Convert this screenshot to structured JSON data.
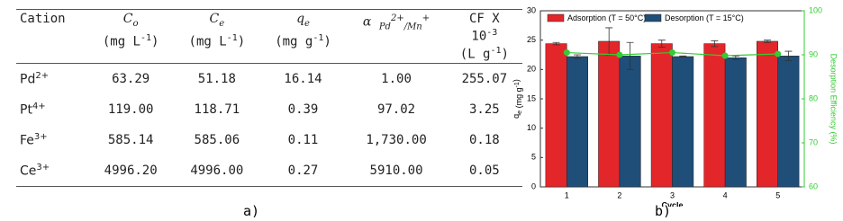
{
  "table": {
    "header": [
      {
        "text": "Cation"
      },
      {
        "symbol": "C",
        "symbol_sub": "o",
        "unit": "(mg L",
        "unit_sup": "-1",
        "unit_end": ")"
      },
      {
        "symbol": "C",
        "symbol_sub": "e",
        "unit": "(mg L",
        "unit_sup": "-1",
        "unit_end": ")"
      },
      {
        "symbol": "q",
        "symbol_sub": "e",
        "unit": "(mg g",
        "unit_sup": "-1",
        "unit_end": ")"
      },
      {
        "symbol": "α",
        "symbol_sub": "Pd",
        "symbol_sup": "2+",
        "symbol_sub2": "/Mn",
        "symbol_sup2": "+"
      },
      {
        "line1": "CF X",
        "line2": "10",
        "line2_sup": "-3",
        "line3": "(L g",
        "line3_sup": "-1",
        "line3_end": ")"
      }
    ],
    "rows": [
      [
        {
          "ion": "Pd",
          "charge": "2+"
        },
        "63.29",
        "51.18",
        "16.14",
        "1.00",
        "255.07"
      ],
      [
        {
          "ion": "Pt",
          "charge": "4+"
        },
        "119.00",
        "118.71",
        "0.39",
        "97.02",
        "3.25"
      ],
      [
        {
          "ion": "Fe",
          "charge": "3+"
        },
        "585.14",
        "585.06",
        "0.11",
        "1,730.00",
        "0.18"
      ],
      [
        {
          "ion": "Ce",
          "charge": "3+"
        },
        "4996.20",
        "4996.00",
        "0.27",
        "5910.00",
        "0.05"
      ]
    ],
    "caption": "a)"
  },
  "chart_data": {
    "type": "bar",
    "caption": "b)",
    "categories": [
      "1",
      "2",
      "3",
      "4",
      "5"
    ],
    "xlabel": "Cycle",
    "ylabel": {
      "text": "q",
      "sub": "e",
      "unit": " (mg g",
      "sup": "-1",
      "end": ")"
    },
    "y2label": "Desorption Efficiency (%)",
    "ylim": [
      0,
      30
    ],
    "yticks": [
      0,
      5,
      10,
      15,
      20,
      25,
      30
    ],
    "y2lim": [
      60,
      100
    ],
    "y2ticks": [
      60,
      70,
      80,
      90,
      100
    ],
    "y2color": "#33cc33",
    "series": [
      {
        "name": "Adsorption (T = 50°C)",
        "color": "#e3262a",
        "values": [
          24.4,
          24.8,
          24.4,
          24.4,
          24.8
        ],
        "errors": [
          0.2,
          2.3,
          0.6,
          0.5,
          0.2
        ]
      },
      {
        "name": "Desorption (T = 15°C)",
        "color": "#1f4e79",
        "values": [
          22.2,
          22.3,
          22.2,
          22.0,
          22.3
        ],
        "errors": [
          0.3,
          2.3,
          0.1,
          0.3,
          0.8
        ]
      },
      {
        "type": "line",
        "axis": "y2",
        "color": "#33cc33",
        "values": [
          90.5,
          90.0,
          90.5,
          89.8,
          90.2
        ]
      }
    ]
  }
}
